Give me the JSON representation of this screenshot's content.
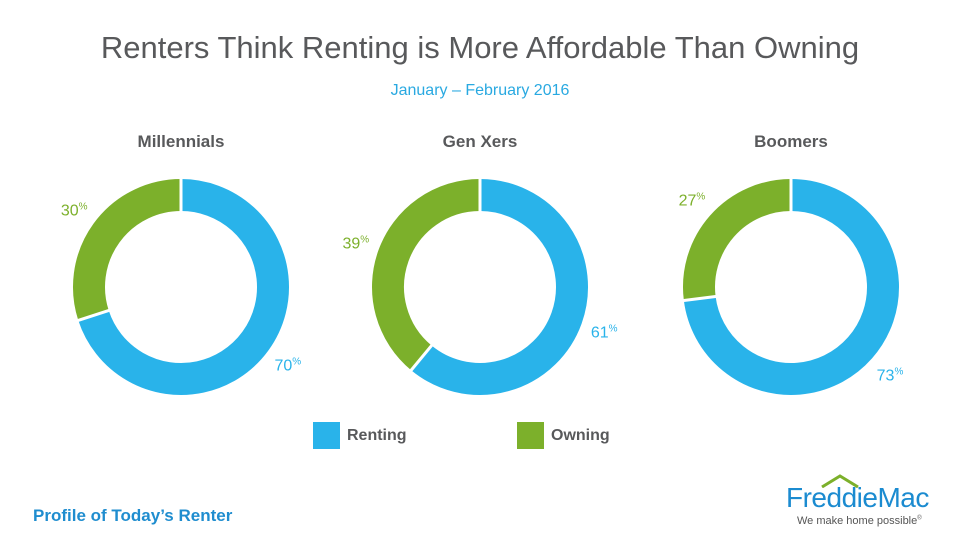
{
  "title": "Renters Think Renting is More Affordable Than Owning",
  "subtitle": "January – February 2016",
  "colors": {
    "renting": "#29b3ea",
    "owning": "#7cb02b",
    "title": "#58595b",
    "accent": "#29a9e1"
  },
  "legend": {
    "renting": "Renting",
    "owning": "Owning"
  },
  "footer": "Profile of Today’s Renter",
  "logo": {
    "name": "FreddieMac",
    "tagline": "We make home possible",
    "reg": "®"
  },
  "chart_data": [
    {
      "type": "pie",
      "title": "Millennials",
      "categories": [
        "Renting",
        "Owning"
      ],
      "values": [
        70,
        30
      ],
      "labels": [
        "70",
        "30"
      ],
      "unit": "%"
    },
    {
      "type": "pie",
      "title": "Gen Xers",
      "categories": [
        "Renting",
        "Owning"
      ],
      "values": [
        61,
        39
      ],
      "labels": [
        "61",
        "39"
      ],
      "unit": "%"
    },
    {
      "type": "pie",
      "title": "Boomers",
      "categories": [
        "Renting",
        "Owning"
      ],
      "values": [
        73,
        27
      ],
      "labels": [
        "73",
        "27"
      ],
      "unit": "%"
    }
  ]
}
